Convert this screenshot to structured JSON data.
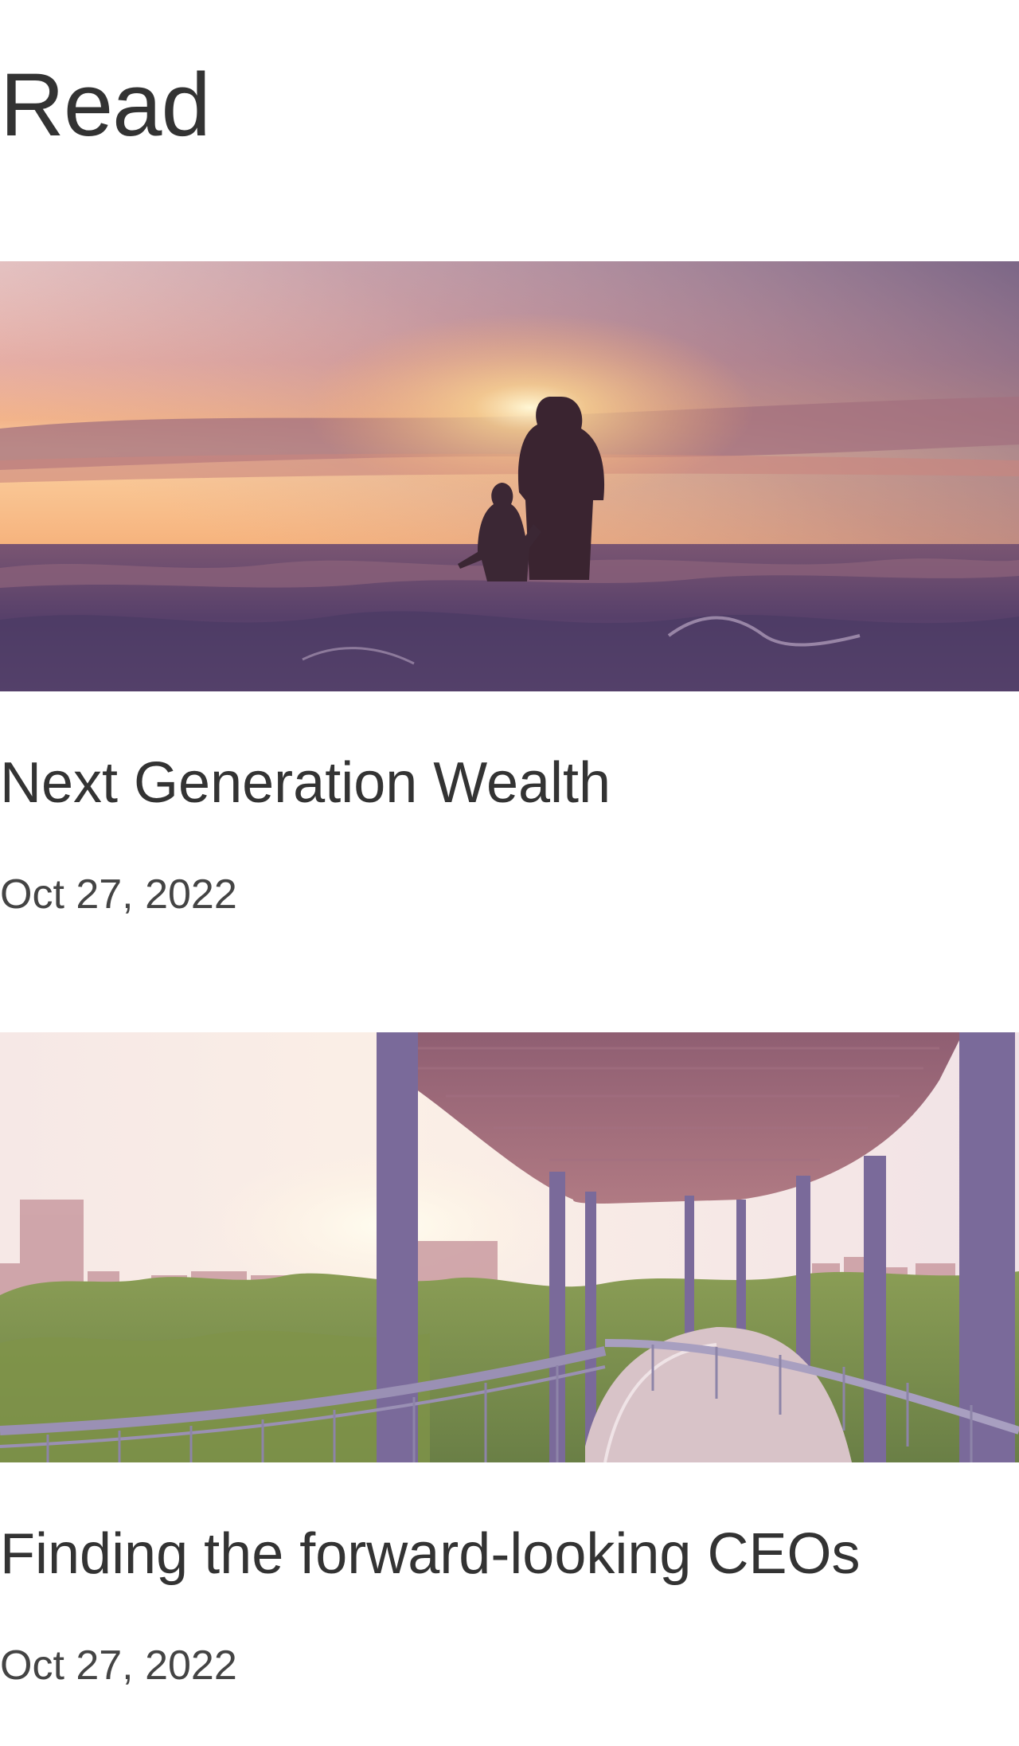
{
  "section": {
    "title": "Read"
  },
  "articles": [
    {
      "title": "Next Generation Wealth",
      "date": "Oct 27, 2022",
      "image": "sunset-ocean-parent-child-photo"
    },
    {
      "title": "Finding the forward-looking CEOs",
      "date": "Oct 27, 2022",
      "image": "canopy-walkway-city-photo"
    }
  ]
}
